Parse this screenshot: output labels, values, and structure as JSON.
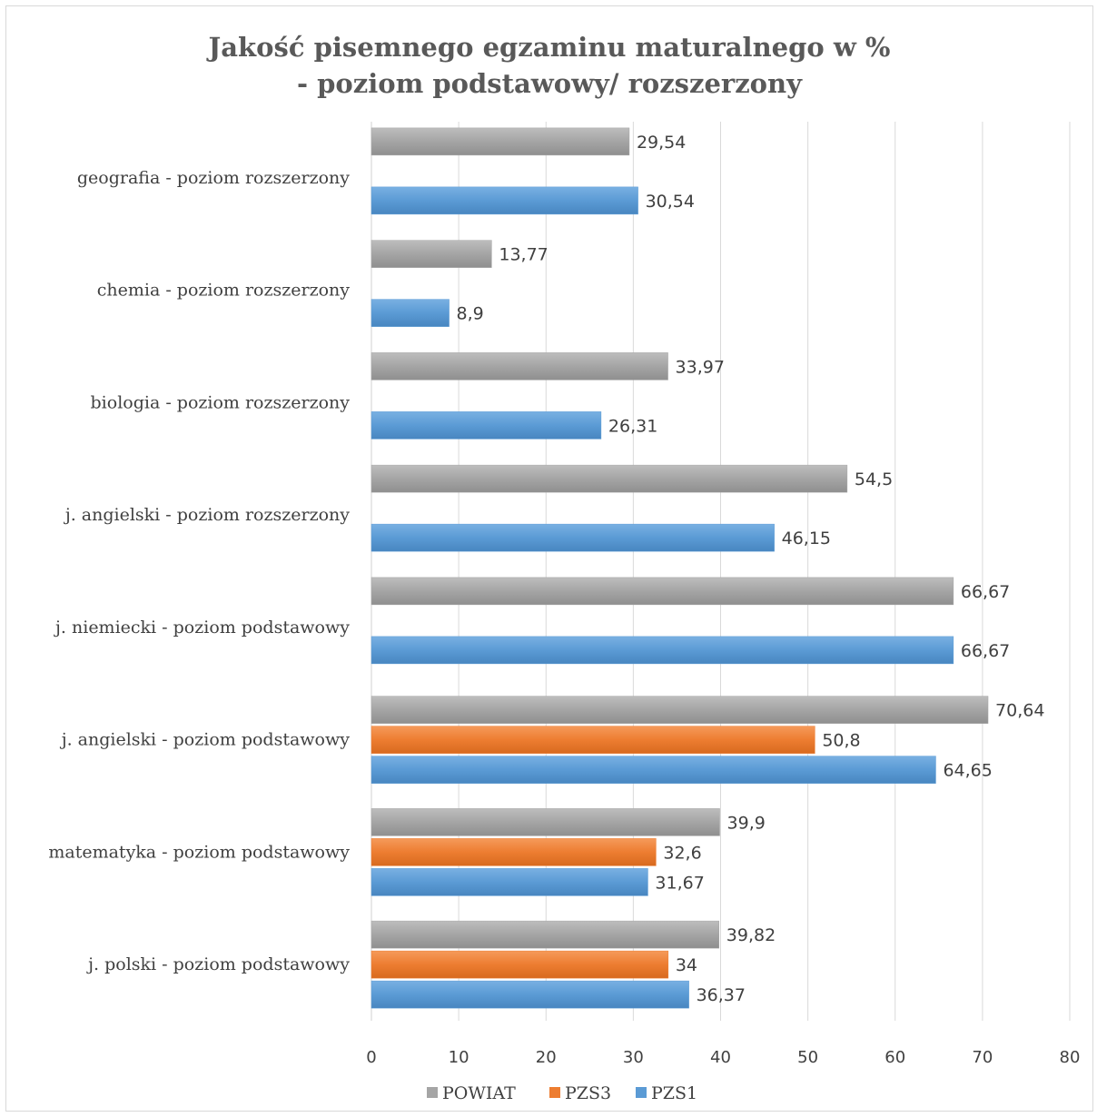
{
  "chart_data": {
    "type": "bar",
    "orientation": "horizontal",
    "title_line1": "Jakość pisemnego egzaminu maturalnego w %",
    "title_line2": "- poziom podstawowy/ rozszerzony",
    "categories": [
      "geografia - poziom rozszerzony",
      "chemia - poziom rozszerzony",
      "biologia - poziom rozszerzony",
      "j. angielski - poziom rozszerzony",
      "j. niemiecki - poziom podstawowy",
      "j. angielski - poziom podstawowy",
      "matematyka - poziom podstawowy",
      "j. polski - poziom podstawowy"
    ],
    "series": [
      {
        "name": "POWIAT",
        "color": "#a5a5a5",
        "values": [
          29.54,
          13.77,
          33.97,
          54.5,
          66.67,
          70.64,
          39.9,
          39.82
        ],
        "labels": [
          "29,54",
          "13,77",
          "33,97",
          "54,5",
          "66,67",
          "70,64",
          "39,9",
          "39,82"
        ]
      },
      {
        "name": "PZS3",
        "color": "#ed7d31",
        "values": [
          null,
          null,
          null,
          null,
          null,
          50.8,
          32.6,
          34
        ],
        "labels": [
          "",
          "",
          "",
          "",
          "",
          "50,8",
          "32,6",
          "34"
        ]
      },
      {
        "name": "PZS1",
        "color": "#5b9bd5",
        "values": [
          30.54,
          8.9,
          26.31,
          46.15,
          66.67,
          64.65,
          31.67,
          36.37
        ],
        "labels": [
          "30,54",
          "8,9",
          "26,31",
          "46,15",
          "66,67",
          "64,65",
          "31,67",
          "36,37"
        ]
      }
    ],
    "xlim": [
      0,
      80
    ],
    "xticks": [
      "0",
      "10",
      "20",
      "30",
      "40",
      "50",
      "60",
      "70",
      "80"
    ],
    "grid": true,
    "legend_position": "bottom"
  }
}
